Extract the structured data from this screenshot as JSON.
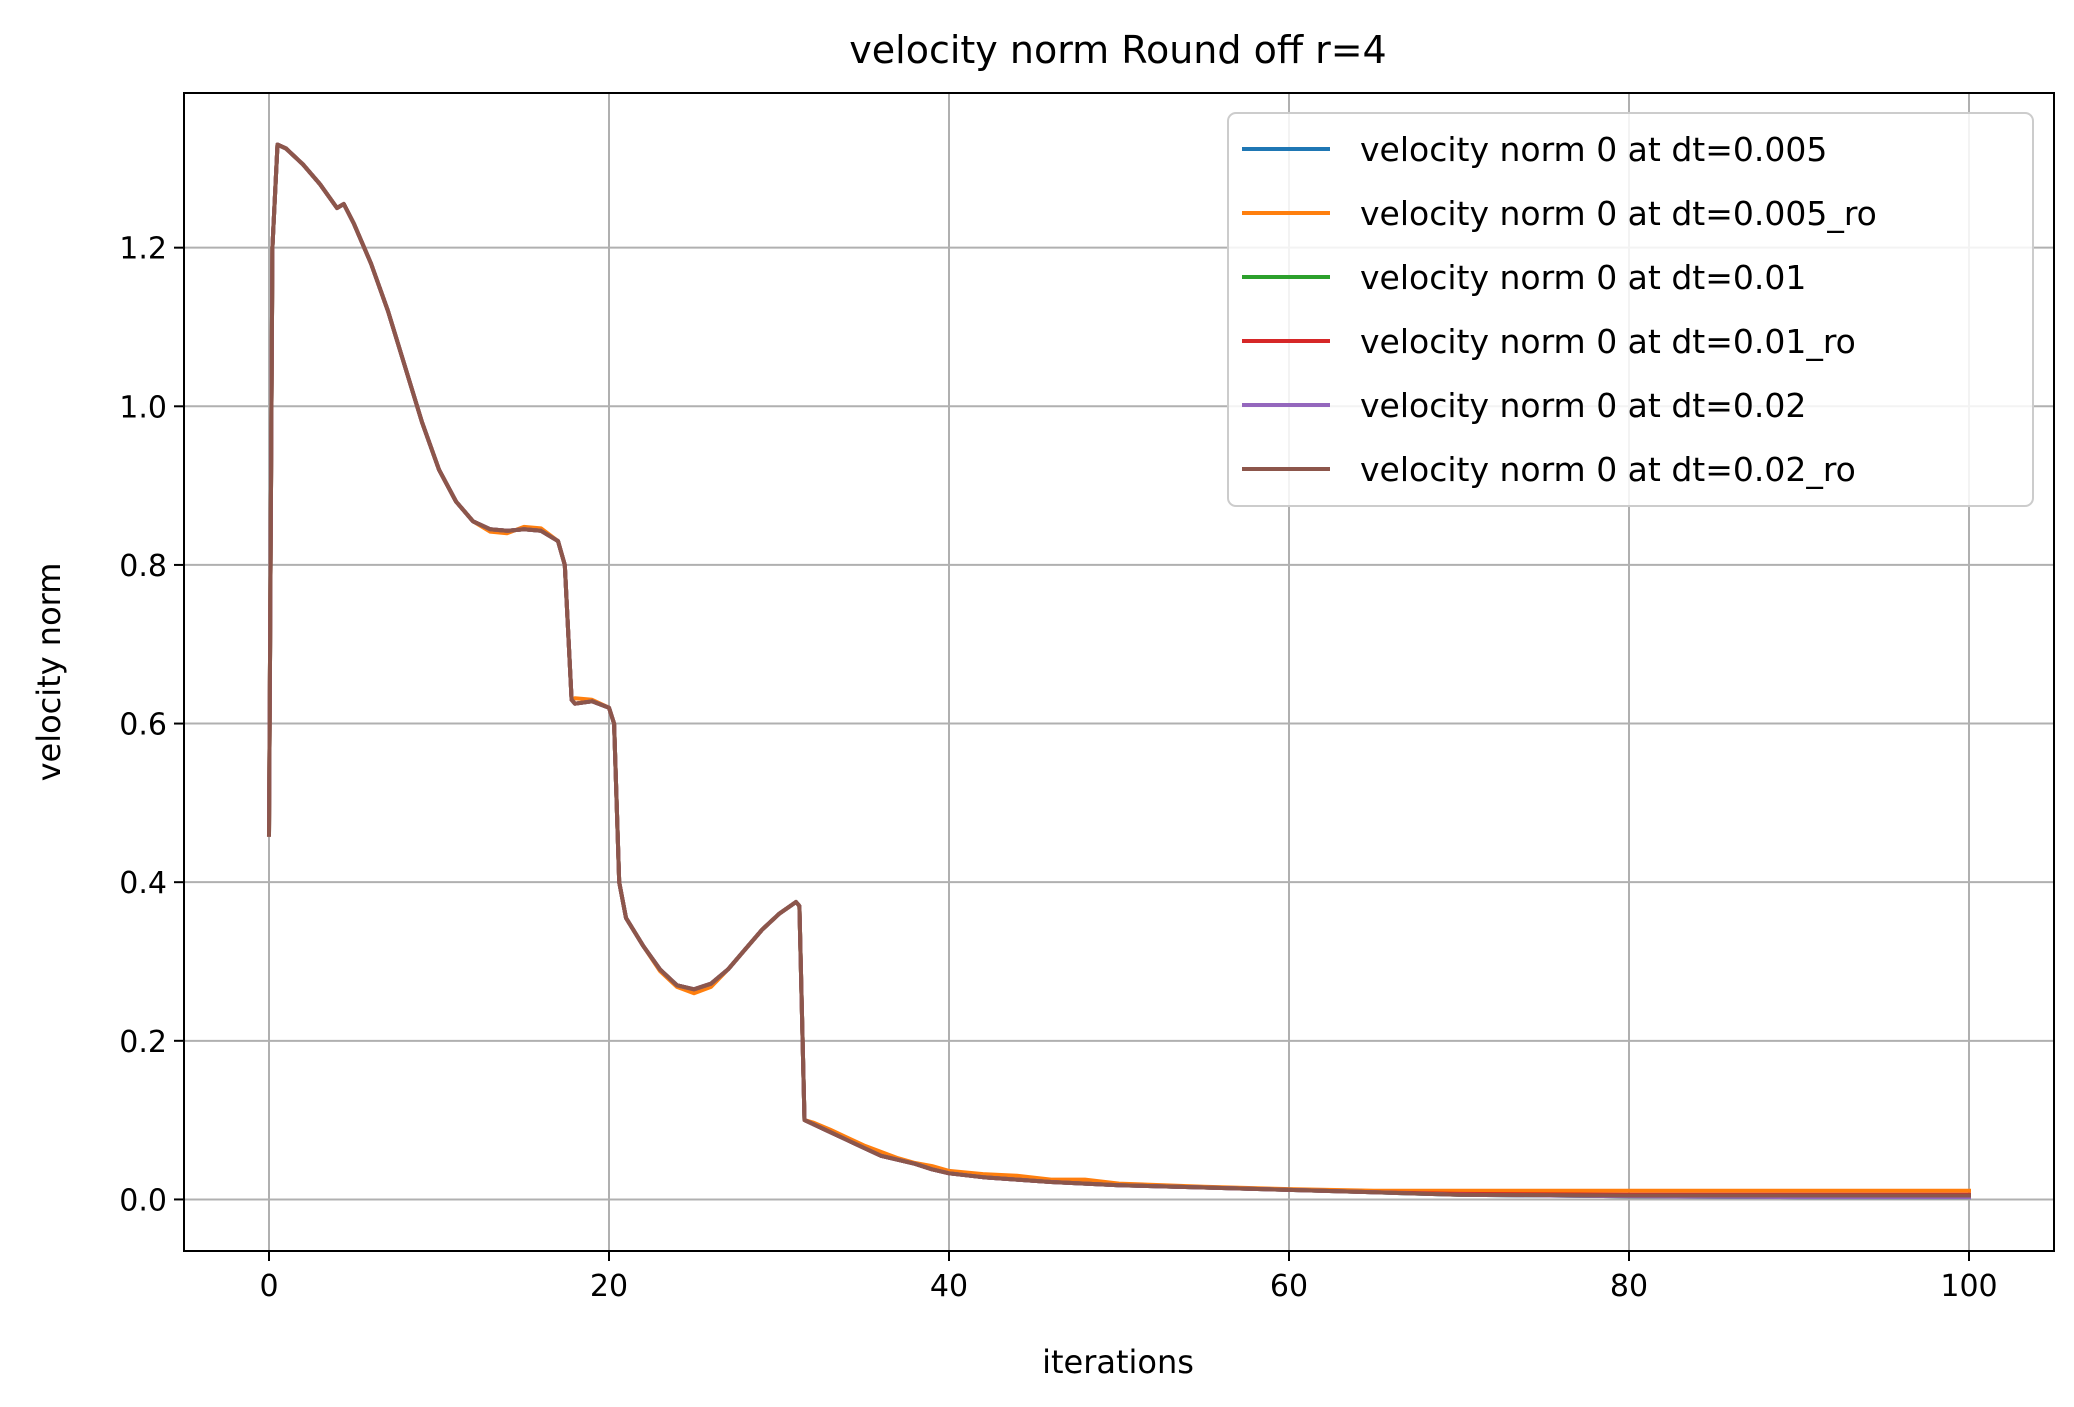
{
  "chart_data": {
    "type": "line",
    "title": "velocity norm Round off r=4",
    "xlabel": "iterations",
    "ylabel": "velocity norm",
    "xlim": [
      -5,
      105
    ],
    "ylim": [
      -0.065,
      1.395
    ],
    "xticks": [
      0,
      20,
      40,
      60,
      80,
      100
    ],
    "yticks": [
      0.0,
      0.2,
      0.4,
      0.6,
      0.8,
      1.0,
      1.2
    ],
    "xtick_labels": [
      "0",
      "20",
      "40",
      "60",
      "80",
      "100"
    ],
    "ytick_labels": [
      "0.0",
      "0.2",
      "0.4",
      "0.6",
      "0.8",
      "1.0",
      "1.2"
    ],
    "grid": true,
    "legend_position": "top-right",
    "series": [
      {
        "name": "velocity norm 0 at dt=0.005",
        "color": "#1f77b4",
        "x": [
          0,
          0.2,
          0.5,
          1,
          2,
          3,
          4,
          4.4,
          5,
          6,
          7,
          8,
          9,
          10,
          11,
          12,
          13,
          14,
          15,
          16,
          17,
          17.4,
          17.8,
          18,
          19,
          20,
          20.3,
          20.6,
          21,
          22,
          23,
          24,
          25,
          26,
          27,
          28,
          29,
          30,
          31,
          31.2,
          31.5,
          32,
          33,
          34,
          35,
          36,
          37,
          38,
          39,
          40,
          42,
          44,
          46,
          48,
          50,
          55,
          60,
          65,
          70,
          80,
          90,
          100
        ],
        "y": [
          0.46,
          1.2,
          1.33,
          1.325,
          1.305,
          1.28,
          1.25,
          1.255,
          1.23,
          1.18,
          1.12,
          1.05,
          0.98,
          0.92,
          0.88,
          0.855,
          0.845,
          0.843,
          0.845,
          0.843,
          0.83,
          0.8,
          0.63,
          0.625,
          0.628,
          0.62,
          0.6,
          0.4,
          0.355,
          0.32,
          0.29,
          0.27,
          0.265,
          0.272,
          0.29,
          0.315,
          0.34,
          0.36,
          0.375,
          0.37,
          0.1,
          0.095,
          0.085,
          0.075,
          0.065,
          0.055,
          0.05,
          0.045,
          0.038,
          0.033,
          0.028,
          0.025,
          0.022,
          0.02,
          0.018,
          0.015,
          0.012,
          0.009,
          0.006,
          0.004,
          0.003,
          0.003
        ]
      },
      {
        "name": "velocity norm 0 at dt=0.005_ro",
        "color": "#ff7f0e",
        "x": [
          0,
          0.2,
          0.5,
          1,
          2,
          3,
          4,
          4.4,
          5,
          6,
          7,
          8,
          9,
          10,
          11,
          12,
          13,
          14,
          15,
          16,
          17,
          17.4,
          17.8,
          18,
          19,
          20,
          20.3,
          20.6,
          21,
          22,
          23,
          24,
          25,
          26,
          27,
          28,
          29,
          30,
          31,
          31.2,
          31.5,
          32,
          33,
          34,
          35,
          36,
          37,
          38,
          39,
          40,
          42,
          44,
          46,
          48,
          50,
          55,
          60,
          65,
          70,
          80,
          90,
          100
        ],
        "y": [
          0.46,
          1.2,
          1.33,
          1.325,
          1.305,
          1.28,
          1.25,
          1.255,
          1.23,
          1.18,
          1.12,
          1.05,
          0.98,
          0.92,
          0.88,
          0.855,
          0.842,
          0.84,
          0.848,
          0.846,
          0.83,
          0.8,
          0.63,
          0.632,
          0.63,
          0.62,
          0.6,
          0.4,
          0.355,
          0.32,
          0.288,
          0.268,
          0.26,
          0.268,
          0.29,
          0.315,
          0.34,
          0.36,
          0.375,
          0.37,
          0.1,
          0.097,
          0.088,
          0.078,
          0.068,
          0.06,
          0.052,
          0.046,
          0.042,
          0.036,
          0.032,
          0.03,
          0.025,
          0.025,
          0.02,
          0.016,
          0.013,
          0.011,
          0.011,
          0.011,
          0.011,
          0.011
        ]
      },
      {
        "name": "velocity norm 0 at dt=0.01",
        "color": "#2ca02c",
        "x": [
          0,
          0.2,
          0.5,
          1,
          2,
          3,
          4,
          4.4,
          5,
          6,
          7,
          8,
          9,
          10,
          11,
          12,
          13,
          14,
          15,
          16,
          17,
          17.4,
          17.8,
          18,
          19,
          20,
          20.3,
          20.6,
          21,
          22,
          23,
          24,
          25,
          26,
          27,
          28,
          29,
          30,
          31,
          31.2,
          31.5,
          32,
          33,
          34,
          35,
          36,
          37,
          38,
          39,
          40,
          42,
          44,
          46,
          48,
          50,
          55,
          60,
          65,
          70,
          80,
          90,
          100
        ],
        "y": [
          0.46,
          1.2,
          1.33,
          1.325,
          1.305,
          1.28,
          1.25,
          1.255,
          1.23,
          1.18,
          1.12,
          1.05,
          0.98,
          0.92,
          0.88,
          0.855,
          0.845,
          0.843,
          0.845,
          0.843,
          0.83,
          0.8,
          0.63,
          0.625,
          0.628,
          0.62,
          0.6,
          0.4,
          0.355,
          0.32,
          0.29,
          0.27,
          0.265,
          0.272,
          0.29,
          0.315,
          0.34,
          0.36,
          0.375,
          0.37,
          0.1,
          0.095,
          0.085,
          0.075,
          0.065,
          0.055,
          0.05,
          0.045,
          0.038,
          0.033,
          0.028,
          0.025,
          0.022,
          0.02,
          0.018,
          0.015,
          0.012,
          0.009,
          0.006,
          0.004,
          0.003,
          0.003
        ]
      },
      {
        "name": "velocity norm 0 at dt=0.01_ro",
        "color": "#d62728",
        "x": [
          0,
          0.2,
          0.5,
          1,
          2,
          3,
          4,
          4.4,
          5,
          6,
          7,
          8,
          9,
          10,
          11,
          12,
          13,
          14,
          15,
          16,
          17,
          17.4,
          17.8,
          18,
          19,
          20,
          20.3,
          20.6,
          21,
          22,
          23,
          24,
          25,
          26,
          27,
          28,
          29,
          30,
          31,
          31.2,
          31.5,
          32,
          33,
          34,
          35,
          36,
          37,
          38,
          39,
          40,
          42,
          44,
          46,
          48,
          50,
          55,
          60,
          65,
          70,
          80,
          90,
          100
        ],
        "y": [
          0.46,
          1.2,
          1.33,
          1.325,
          1.305,
          1.28,
          1.25,
          1.255,
          1.23,
          1.18,
          1.12,
          1.05,
          0.98,
          0.92,
          0.88,
          0.855,
          0.845,
          0.843,
          0.845,
          0.843,
          0.83,
          0.8,
          0.63,
          0.625,
          0.628,
          0.62,
          0.6,
          0.4,
          0.355,
          0.32,
          0.29,
          0.27,
          0.265,
          0.272,
          0.29,
          0.315,
          0.34,
          0.36,
          0.375,
          0.37,
          0.1,
          0.095,
          0.085,
          0.075,
          0.065,
          0.055,
          0.05,
          0.045,
          0.038,
          0.033,
          0.028,
          0.025,
          0.022,
          0.02,
          0.018,
          0.015,
          0.012,
          0.009,
          0.007,
          0.006,
          0.006,
          0.006
        ]
      },
      {
        "name": "velocity norm 0 at dt=0.02",
        "color": "#9467bd",
        "x": [
          0,
          0.2,
          0.5,
          1,
          2,
          3,
          4,
          4.4,
          5,
          6,
          7,
          8,
          9,
          10,
          11,
          12,
          13,
          14,
          15,
          16,
          17,
          17.4,
          17.8,
          18,
          19,
          20,
          20.3,
          20.6,
          21,
          22,
          23,
          24,
          25,
          26,
          27,
          28,
          29,
          30,
          31,
          31.2,
          31.5,
          32,
          33,
          34,
          35,
          36,
          37,
          38,
          39,
          40,
          42,
          44,
          46,
          48,
          50,
          55,
          60,
          65,
          70,
          80,
          90,
          100
        ],
        "y": [
          0.46,
          1.2,
          1.33,
          1.325,
          1.305,
          1.28,
          1.25,
          1.255,
          1.23,
          1.18,
          1.12,
          1.05,
          0.98,
          0.92,
          0.88,
          0.855,
          0.845,
          0.843,
          0.845,
          0.843,
          0.83,
          0.8,
          0.63,
          0.625,
          0.628,
          0.62,
          0.6,
          0.4,
          0.355,
          0.32,
          0.29,
          0.27,
          0.265,
          0.272,
          0.29,
          0.315,
          0.34,
          0.36,
          0.375,
          0.37,
          0.1,
          0.095,
          0.085,
          0.075,
          0.065,
          0.055,
          0.05,
          0.045,
          0.038,
          0.033,
          0.028,
          0.025,
          0.022,
          0.02,
          0.018,
          0.015,
          0.012,
          0.009,
          0.006,
          0.004,
          0.003,
          0.003
        ]
      },
      {
        "name": "velocity norm 0 at dt=0.02_ro",
        "color": "#8c564b",
        "x": [
          0,
          0.2,
          0.5,
          1,
          2,
          3,
          4,
          4.4,
          5,
          6,
          7,
          8,
          9,
          10,
          11,
          12,
          13,
          14,
          15,
          16,
          17,
          17.4,
          17.8,
          18,
          19,
          20,
          20.3,
          20.6,
          21,
          22,
          23,
          24,
          25,
          26,
          27,
          28,
          29,
          30,
          31,
          31.2,
          31.5,
          32,
          33,
          34,
          35,
          36,
          37,
          38,
          39,
          40,
          42,
          44,
          46,
          48,
          50,
          55,
          60,
          65,
          70,
          80,
          90,
          100
        ],
        "y": [
          0.46,
          1.2,
          1.33,
          1.325,
          1.305,
          1.28,
          1.25,
          1.255,
          1.23,
          1.18,
          1.12,
          1.05,
          0.98,
          0.92,
          0.88,
          0.855,
          0.845,
          0.843,
          0.845,
          0.843,
          0.83,
          0.8,
          0.63,
          0.625,
          0.628,
          0.62,
          0.6,
          0.4,
          0.355,
          0.32,
          0.29,
          0.27,
          0.265,
          0.272,
          0.29,
          0.315,
          0.34,
          0.36,
          0.375,
          0.37,
          0.1,
          0.095,
          0.085,
          0.075,
          0.065,
          0.055,
          0.05,
          0.045,
          0.038,
          0.033,
          0.028,
          0.025,
          0.022,
          0.02,
          0.018,
          0.015,
          0.012,
          0.009,
          0.006,
          0.005,
          0.005,
          0.005
        ]
      }
    ]
  }
}
